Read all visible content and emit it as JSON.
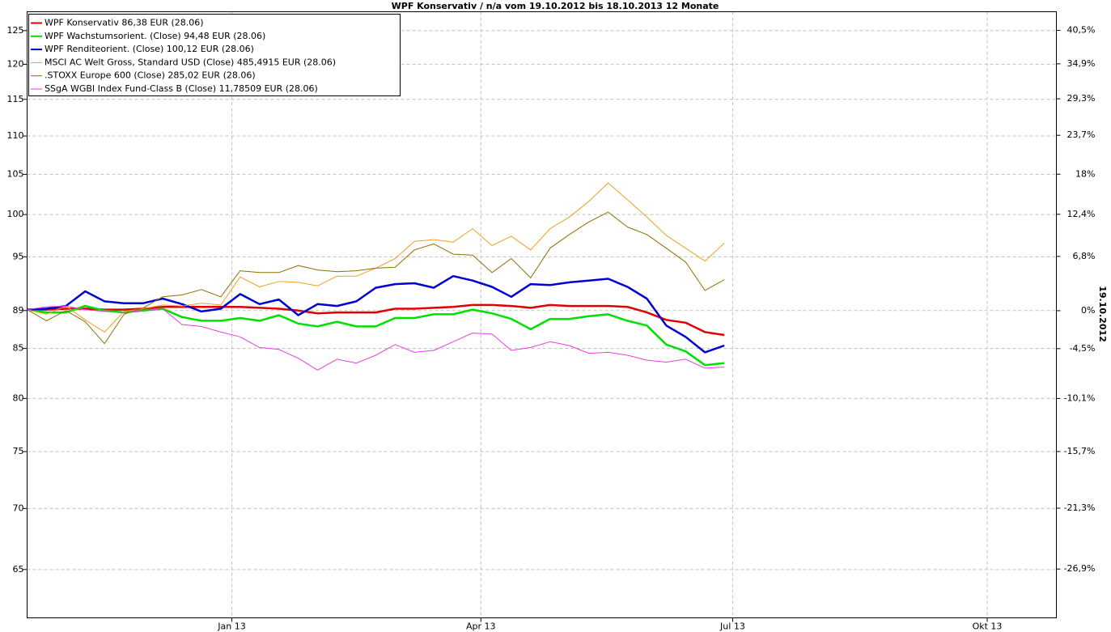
{
  "chart_data": {
    "type": "line",
    "title": "WPF Konservativ / n/a vom 19.10.2012 bis 18.10.2013 12 Monate",
    "y2_label": "19.10.2012",
    "log": true,
    "grid": true,
    "legend": "top-left",
    "x": [
      0,
      7,
      14,
      21,
      28,
      35,
      42,
      49,
      56,
      63,
      70,
      77,
      84,
      91,
      98,
      105,
      112,
      119,
      126,
      133,
      140,
      147,
      154,
      161,
      168,
      175,
      182,
      189,
      196,
      203,
      210,
      217,
      224,
      231,
      238,
      245,
      252
    ],
    "xlim": [
      0,
      372
    ],
    "xticks": [
      {
        "value": 74,
        "label": "Jan 13"
      },
      {
        "value": 164,
        "label": "Apr 13"
      },
      {
        "value": 255,
        "label": "Jul 13"
      },
      {
        "value": 347,
        "label": "Okt 13"
      }
    ],
    "ylim": [
      61.3,
      127.9
    ],
    "yticks": [
      65,
      70,
      75,
      80,
      85,
      89,
      95,
      100,
      105,
      110,
      115,
      120,
      125
    ],
    "y2lim": [
      -31.1,
      43.7
    ],
    "y2ticks": [
      {
        "value": 40.5,
        "label": "40,5%"
      },
      {
        "value": 34.9,
        "label": "34,9%"
      },
      {
        "value": 29.3,
        "label": "29,3%"
      },
      {
        "value": 23.7,
        "label": "23,7%"
      },
      {
        "value": 18,
        "label": "18%"
      },
      {
        "value": 12.4,
        "label": "12,4%"
      },
      {
        "value": 6.8,
        "label": "6,8%"
      },
      {
        "value": 0,
        "label": "0%"
      },
      {
        "value": -4.5,
        "label": "-4,5%"
      },
      {
        "value": -10.1,
        "label": "-10,1%"
      },
      {
        "value": -15.7,
        "label": "-15,7%"
      },
      {
        "value": -21.3,
        "label": "-21,3%"
      },
      {
        "value": -26.9,
        "label": "-26,9%"
      }
    ],
    "series": [
      {
        "name": "WPF Konservativ 86,38 EUR (28.06)",
        "color": "#e00000",
        "width": 2.5,
        "values": [
          89.1,
          89.1,
          89.2,
          89.2,
          89.1,
          89.1,
          89.2,
          89.4,
          89.4,
          89.4,
          89.4,
          89.4,
          89.3,
          89.2,
          89.0,
          88.7,
          88.8,
          88.8,
          88.8,
          89.2,
          89.2,
          89.3,
          89.4,
          89.6,
          89.6,
          89.5,
          89.3,
          89.6,
          89.5,
          89.5,
          89.5,
          89.4,
          88.8,
          88.0,
          87.7,
          86.7,
          86.4
        ]
      },
      {
        "name": "WPF Wachstumsorient. (Close) 94,48 EUR (28.06)",
        "color": "#00e000",
        "width": 2.5,
        "values": [
          89.1,
          88.8,
          88.8,
          89.5,
          89.0,
          88.8,
          89.0,
          89.2,
          88.3,
          87.9,
          87.9,
          88.2,
          87.9,
          88.5,
          87.6,
          87.3,
          87.8,
          87.3,
          87.3,
          88.2,
          88.2,
          88.6,
          88.6,
          89.1,
          88.7,
          88.1,
          87.0,
          88.1,
          88.1,
          88.4,
          88.6,
          87.9,
          87.4,
          85.4,
          84.7,
          83.3,
          83.5
        ]
      },
      {
        "name": "WPF Renditeorient. (Close) 100,12 EUR (28.06)",
        "color": "#0000d0",
        "width": 2.5,
        "values": [
          89.1,
          89.2,
          89.5,
          91.1,
          90.0,
          89.8,
          89.8,
          90.3,
          89.7,
          88.9,
          89.2,
          90.8,
          89.7,
          90.2,
          88.5,
          89.7,
          89.5,
          90.0,
          91.5,
          91.9,
          92.0,
          91.5,
          92.8,
          92.3,
          91.6,
          90.5,
          91.9,
          91.8,
          92.1,
          92.3,
          92.5,
          91.6,
          90.3,
          87.4,
          86.2,
          84.6,
          85.3
        ]
      },
      {
        "name": "MSCI AC Welt Gross, Standard USD (Close) 485,4915 EUR (28.06)",
        "color": "#f0a020",
        "width": 1,
        "values": [
          89.1,
          88.6,
          89.5,
          88.0,
          86.7,
          88.9,
          89.2,
          89.6,
          89.5,
          89.8,
          89.6,
          92.7,
          91.6,
          92.2,
          92.1,
          91.7,
          92.8,
          92.8,
          93.7,
          94.8,
          96.8,
          97.0,
          96.7,
          98.3,
          96.3,
          97.4,
          95.8,
          98.3,
          99.7,
          101.6,
          103.9,
          101.8,
          99.7,
          97.5,
          96.0,
          94.5,
          96.6
        ]
      },
      {
        "name": ".STOXX Europe 600 (Close) 285,02 EUR (28.06)",
        "color": "#8c7000",
        "width": 1,
        "values": [
          89.1,
          87.9,
          89.0,
          87.8,
          85.5,
          88.6,
          89.3,
          90.5,
          90.7,
          91.3,
          90.5,
          93.4,
          93.2,
          93.2,
          94.0,
          93.5,
          93.3,
          93.4,
          93.7,
          93.8,
          95.8,
          96.5,
          95.3,
          95.2,
          93.2,
          94.8,
          92.6,
          96.0,
          97.6,
          99.1,
          100.3,
          98.5,
          97.6,
          96.0,
          94.4,
          91.2,
          92.4
        ]
      },
      {
        "name": "SSgA WGBI Index Fund-Class B (Close) 11,78509 EUR (28.06)",
        "color": "#e040e0",
        "width": 1,
        "values": [
          89.1,
          89.4,
          89.5,
          89.1,
          88.9,
          88.8,
          89.0,
          89.2,
          87.5,
          87.3,
          86.7,
          86.2,
          85.1,
          84.9,
          84.0,
          82.8,
          83.9,
          83.5,
          84.3,
          85.4,
          84.6,
          84.8,
          85.7,
          86.6,
          86.5,
          84.8,
          85.1,
          85.7,
          85.3,
          84.5,
          84.6,
          84.3,
          83.8,
          83.6,
          83.9,
          83.0,
          83.1
        ]
      }
    ]
  }
}
